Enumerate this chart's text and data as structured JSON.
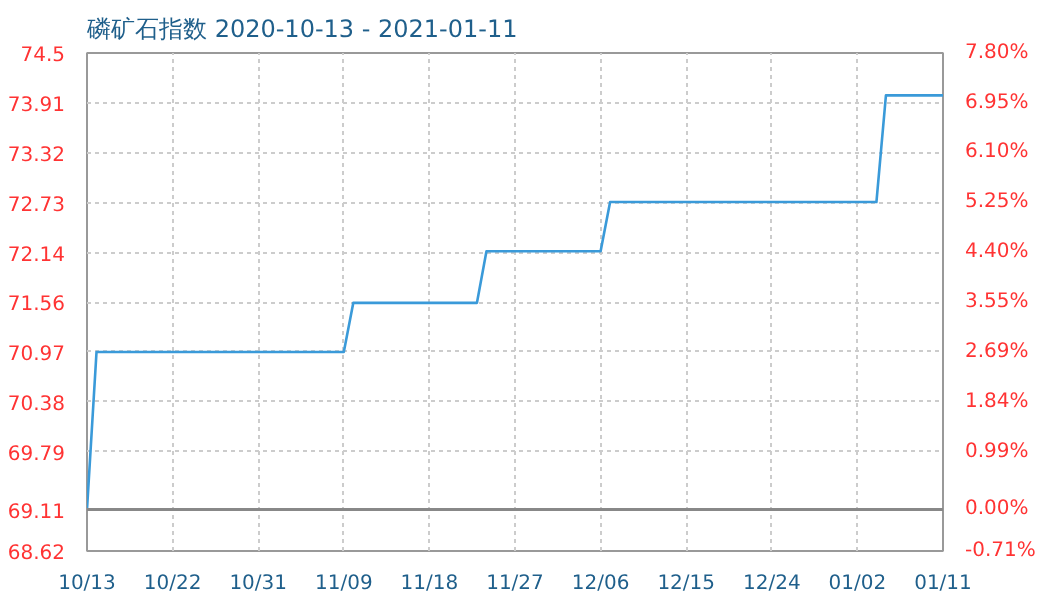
{
  "chart_data": {
    "type": "line",
    "title": "磷矿石指数 2020-10-13 - 2021-01-11",
    "x": [
      "2020-10-13",
      "2020-10-14",
      "2020-11-09",
      "2020-11-10",
      "2020-11-23",
      "2020-11-24",
      "2020-12-06",
      "2020-12-07",
      "2021-01-04",
      "2021-01-05",
      "2021-01-11"
    ],
    "series": [
      {
        "color": "#3a9ad9",
        "values": [
          69.11,
          70.97,
          70.97,
          71.55,
          71.55,
          72.16,
          72.16,
          72.74,
          72.74,
          74.0,
          74.0
        ]
      }
    ],
    "xlim": [
      "2020-10-13",
      "2021-01-11"
    ],
    "xticks": [
      {
        "value": "2020-10-13",
        "label": "10/13"
      },
      {
        "value": "2020-10-22",
        "label": "10/22"
      },
      {
        "value": "2020-10-31",
        "label": "10/31"
      },
      {
        "value": "2020-11-09",
        "label": "11/09"
      },
      {
        "value": "2020-11-18",
        "label": "11/18"
      },
      {
        "value": "2020-11-27",
        "label": "11/27"
      },
      {
        "value": "2020-12-06",
        "label": "12/06"
      },
      {
        "value": "2020-12-15",
        "label": "12/15"
      },
      {
        "value": "2020-12-24",
        "label": "12/24"
      },
      {
        "value": "2021-01-02",
        "label": "01/02"
      },
      {
        "value": "2021-01-11",
        "label": "01/11"
      }
    ],
    "ylim": [
      68.62,
      74.5
    ],
    "yticks": [
      68.62,
      69.11,
      69.79,
      70.38,
      70.97,
      71.56,
      72.14,
      72.73,
      73.32,
      73.91,
      74.5
    ],
    "y2lim": [
      -0.71,
      7.8
    ],
    "y2ticks": [
      {
        "value": -0.71,
        "label": "-0.71%"
      },
      {
        "value": 0,
        "label": "0.00%"
      },
      {
        "value": 0.99,
        "label": "0.99%"
      },
      {
        "value": 1.84,
        "label": "1.84%"
      },
      {
        "value": 2.69,
        "label": "2.69%"
      },
      {
        "value": 3.55,
        "label": "3.55%"
      },
      {
        "value": 4.4,
        "label": "4.40%"
      },
      {
        "value": 5.25,
        "label": "5.25%"
      },
      {
        "value": 6.1,
        "label": "6.10%"
      },
      {
        "value": 6.95,
        "label": "6.95%"
      },
      {
        "value": 7.8,
        "label": "7.80%"
      }
    ],
    "ref_lines": [
      {
        "axis": "y",
        "value": 69.11,
        "color": "#888888"
      }
    ],
    "grid": true,
    "marker": "none",
    "line_style": "solid"
  }
}
